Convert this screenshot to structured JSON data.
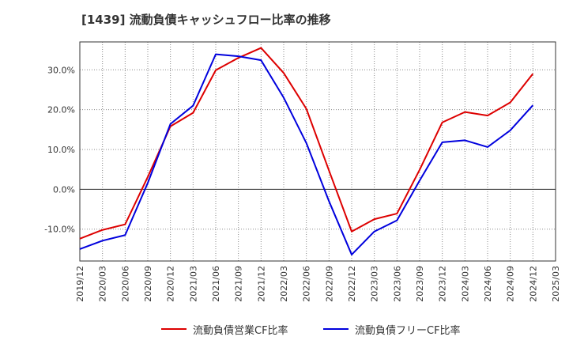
{
  "chart_data": {
    "type": "line",
    "title": "[1439]  流動負債キャッシュフロー比率の推移",
    "xlabel": "",
    "ylabel": "",
    "x": [
      "2019/12",
      "2020/03",
      "2020/06",
      "2020/09",
      "2020/12",
      "2021/03",
      "2021/06",
      "2021/09",
      "2021/12",
      "2022/03",
      "2022/06",
      "2022/09",
      "2022/12",
      "2023/03",
      "2023/06",
      "2023/09",
      "2023/12",
      "2024/03",
      "2024/06",
      "2024/09",
      "2024/12",
      "2025/03"
    ],
    "y_ticks": [
      "-10.0%",
      "0.0%",
      "10.0%",
      "20.0%",
      "30.0%"
    ],
    "ylim": [
      -18.0,
      37.0
    ],
    "grid": true,
    "legend_position": "bottom",
    "series": [
      {
        "name": "流動負債営業CF比率",
        "color": "#dd0000",
        "values": [
          -12.4,
          -10.2,
          -8.8,
          3.1,
          15.8,
          19.2,
          29.9,
          33.0,
          35.5,
          29.2,
          20.2,
          4.7,
          -10.6,
          -7.5,
          -6.1,
          4.9,
          16.8,
          19.4,
          18.5,
          21.8,
          29.0,
          null
        ]
      },
      {
        "name": "流動負債フリーCF比率",
        "color": "#0000dd",
        "values": [
          -15.0,
          -12.9,
          -11.5,
          1.6,
          16.4,
          21.0,
          33.9,
          33.4,
          32.4,
          23.0,
          11.6,
          -3.0,
          -16.4,
          -10.6,
          -7.8,
          2.2,
          11.8,
          12.3,
          10.6,
          14.8,
          21.1,
          null
        ]
      }
    ]
  }
}
